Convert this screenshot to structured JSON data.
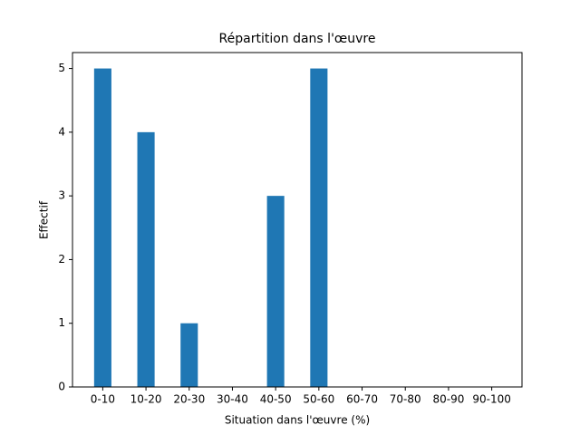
{
  "chart_data": {
    "type": "bar",
    "title": "Répartition dans l'œuvre",
    "x_label": "Situation dans l'œuvre (%)",
    "y_label": "Effectif",
    "categories": [
      "0-10",
      "10-20",
      "20-30",
      "30-40",
      "40-50",
      "50-60",
      "60-70",
      "70-80",
      "80-90",
      "90-100"
    ],
    "values": [
      5,
      4,
      1,
      0,
      3,
      5,
      0,
      0,
      0,
      0
    ],
    "color": "#1f77b4",
    "ylim": [
      0,
      5.25
    ],
    "yticks": [
      0,
      1,
      2,
      3,
      4,
      5
    ],
    "grid": false
  }
}
